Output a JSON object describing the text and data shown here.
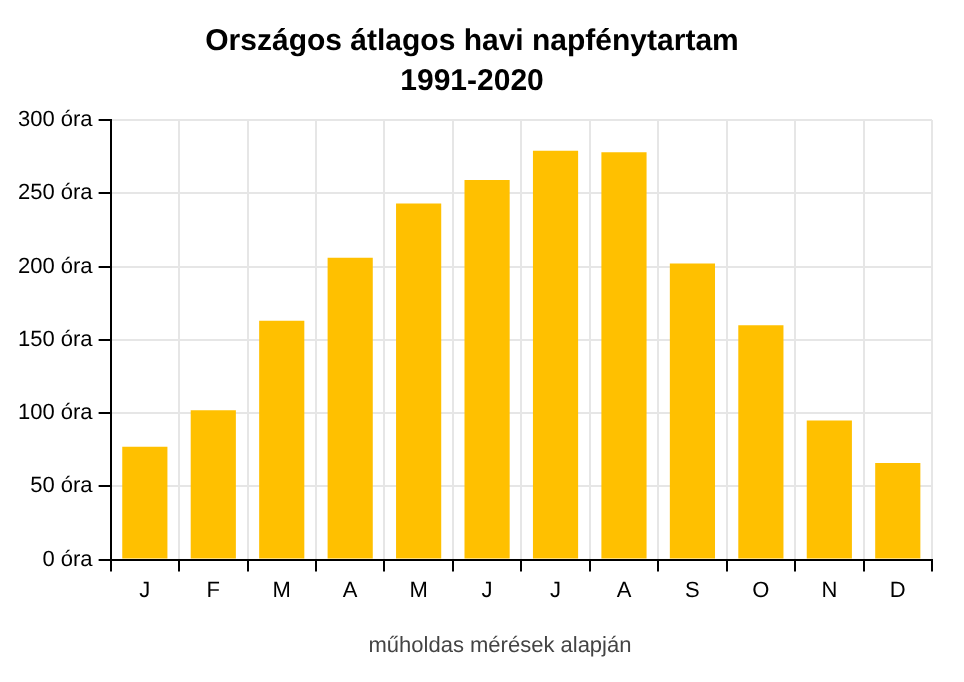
{
  "chart_data": {
    "type": "bar",
    "title": "Országos átlagos havi napfénytartam",
    "subtitle": "1991-2020",
    "categories": [
      "J",
      "F",
      "M",
      "A",
      "M",
      "J",
      "J",
      "A",
      "S",
      "O",
      "N",
      "D"
    ],
    "values": [
      77,
      102,
      163,
      206,
      243,
      259,
      279,
      278,
      202,
      160,
      95,
      66
    ],
    "color": "#ffc000",
    "ylim": [
      0,
      300
    ],
    "yticks": [
      {
        "value": 0,
        "label": "0 óra"
      },
      {
        "value": 50,
        "label": "50 óra"
      },
      {
        "value": 100,
        "label": "100 óra"
      },
      {
        "value": 150,
        "label": "150 óra"
      },
      {
        "value": 200,
        "label": "200 óra"
      },
      {
        "value": 250,
        "label": "250 óra"
      },
      {
        "value": 300,
        "label": "300 óra"
      }
    ],
    "grid": true,
    "annotations": [
      "műholdas mérések alapján"
    ]
  }
}
